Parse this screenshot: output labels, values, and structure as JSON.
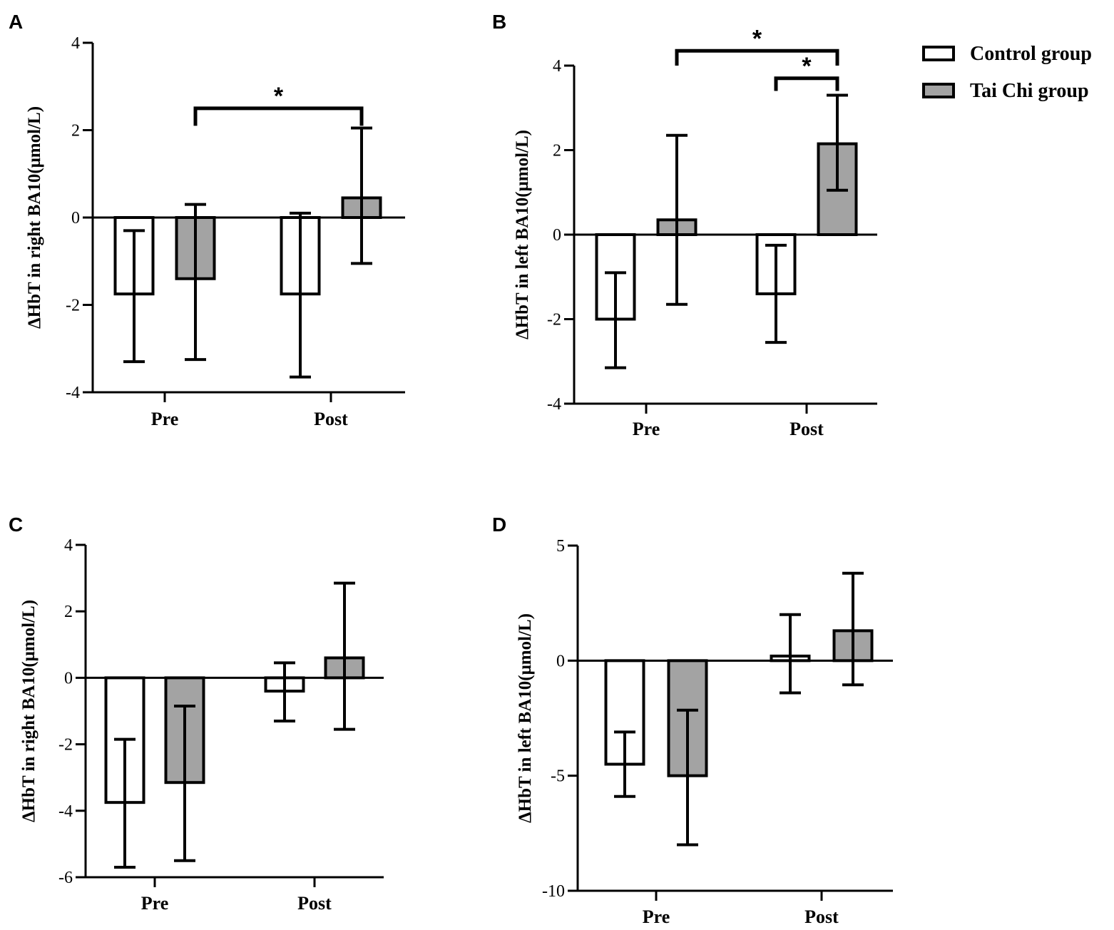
{
  "colors": {
    "control": "#ffffff",
    "taichi": "#a3a3a3",
    "stroke": "#000000"
  },
  "legend": [
    {
      "label": "Control group",
      "color": "#ffffff"
    },
    {
      "label": "Tai Chi group",
      "color": "#a3a3a3"
    }
  ],
  "chart_data": [
    {
      "type": "bar",
      "panel": "A",
      "ylabel": "ΔHbT in right BA10(μmol/L)",
      "categories": [
        "Pre",
        "Post"
      ],
      "ylim": [
        -4,
        4
      ],
      "yticks": [
        4,
        2,
        0,
        -2,
        -4
      ],
      "series": [
        {
          "name": "Control group",
          "values": [
            -1.75,
            -1.75
          ],
          "err_low": [
            -3.3,
            -3.65
          ],
          "err_high": [
            -0.3,
            0.1
          ]
        },
        {
          "name": "Tai Chi group",
          "values": [
            -1.4,
            0.45
          ],
          "err_low": [
            -3.25,
            -1.05
          ],
          "err_high": [
            0.3,
            2.05
          ]
        }
      ],
      "annotations": [
        {
          "text": "*",
          "from": [
            0,
            1
          ],
          "to": [
            1,
            1
          ],
          "level": 2.5,
          "tick_min": 2.1
        }
      ]
    },
    {
      "type": "bar",
      "panel": "B",
      "ylabel": "ΔHbT in left BA10(μmol/L)",
      "categories": [
        "Pre",
        "Post"
      ],
      "ylim": [
        -4,
        4
      ],
      "yticks": [
        4,
        2,
        0,
        -2,
        -4
      ],
      "series": [
        {
          "name": "Control group",
          "values": [
            -2.0,
            -1.4
          ],
          "err_low": [
            -3.15,
            -2.55
          ],
          "err_high": [
            -0.9,
            -0.25
          ]
        },
        {
          "name": "Tai Chi group",
          "values": [
            0.35,
            2.15
          ],
          "err_low": [
            -1.65,
            1.05
          ],
          "err_high": [
            2.35,
            3.3
          ]
        }
      ],
      "annotations": [
        {
          "text": "*",
          "from": [
            0,
            1
          ],
          "to": [
            1,
            1
          ],
          "level": 4.35,
          "tick_min": 4.0
        },
        {
          "text": "*",
          "from": [
            1,
            0
          ],
          "to": [
            1,
            1
          ],
          "level": 3.7,
          "tick_min": 3.4
        }
      ]
    },
    {
      "type": "bar",
      "panel": "C",
      "ylabel": "ΔHbT in right BA10(μmol/L)",
      "categories": [
        "Pre",
        "Post"
      ],
      "ylim": [
        -6,
        4
      ],
      "yticks": [
        4,
        2,
        0,
        -2,
        -4,
        -6
      ],
      "series": [
        {
          "name": "Control group",
          "values": [
            -3.75,
            -0.4
          ],
          "err_low": [
            -5.7,
            -1.3
          ],
          "err_high": [
            -1.85,
            0.45
          ]
        },
        {
          "name": "Tai Chi group",
          "values": [
            -3.15,
            0.6
          ],
          "err_low": [
            -5.5,
            -1.55
          ],
          "err_high": [
            -0.85,
            2.85
          ]
        }
      ],
      "annotations": []
    },
    {
      "type": "bar",
      "panel": "D",
      "ylabel": "ΔHbT in left BA10(μmol/L)",
      "categories": [
        "Pre",
        "Post"
      ],
      "ylim": [
        -10,
        5
      ],
      "yticks": [
        5,
        0,
        -5,
        -10
      ],
      "series": [
        {
          "name": "Control group",
          "values": [
            -4.5,
            0.2
          ],
          "err_low": [
            -5.9,
            -1.4
          ],
          "err_high": [
            -3.1,
            2.0
          ]
        },
        {
          "name": "Tai Chi group",
          "values": [
            -5.0,
            1.3
          ],
          "err_low": [
            -8.0,
            -1.05
          ],
          "err_high": [
            -2.15,
            3.8
          ]
        }
      ],
      "annotations": []
    }
  ]
}
